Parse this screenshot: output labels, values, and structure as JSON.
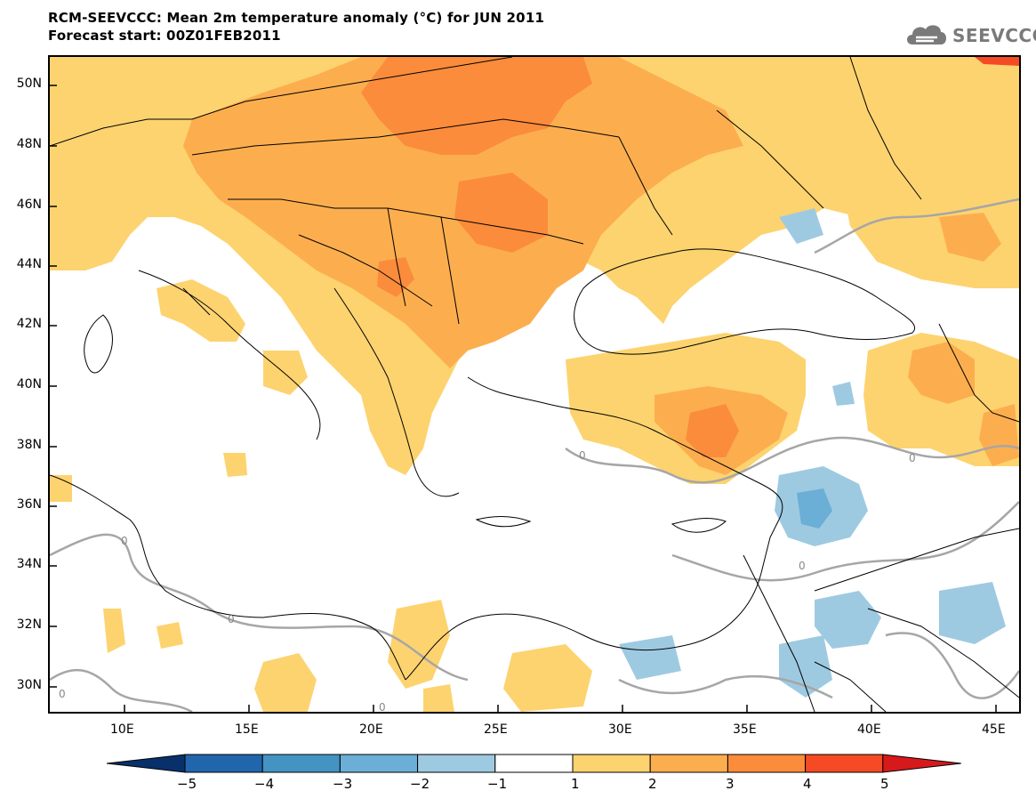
{
  "header": {
    "title": "RCM-SEEVCCC: Mean 2m temperature anomaly (°C) for JUN 2011",
    "subtitle": "Forecast start: 00Z01FEB2011"
  },
  "logo": {
    "text": "SEEVCCC",
    "icon": "cloud-icon"
  },
  "map": {
    "lon_range": [
      7,
      46
    ],
    "lat_range": [
      29,
      51
    ],
    "lat_ticks": [
      "50N",
      "48N",
      "46N",
      "44N",
      "42N",
      "40N",
      "38N",
      "36N",
      "34N",
      "32N",
      "30N"
    ],
    "lon_ticks": [
      "10E",
      "15E",
      "20E",
      "25E",
      "30E",
      "35E",
      "40E",
      "45E"
    ],
    "contour_labels": [
      "0",
      "0",
      "0",
      "0",
      "0",
      "0",
      "0"
    ]
  },
  "colorbar": {
    "labels": [
      "−5",
      "−4",
      "−3",
      "−2",
      "−1",
      "1",
      "2",
      "3",
      "4",
      "5"
    ],
    "colors": [
      "#08306b",
      "#2166ac",
      "#4393c3",
      "#6baed6",
      "#9ecae1",
      "#ffffff",
      "#fdd36f",
      "#fcae4f",
      "#fb8c3c",
      "#f54a24",
      "#d7191c"
    ]
  }
}
